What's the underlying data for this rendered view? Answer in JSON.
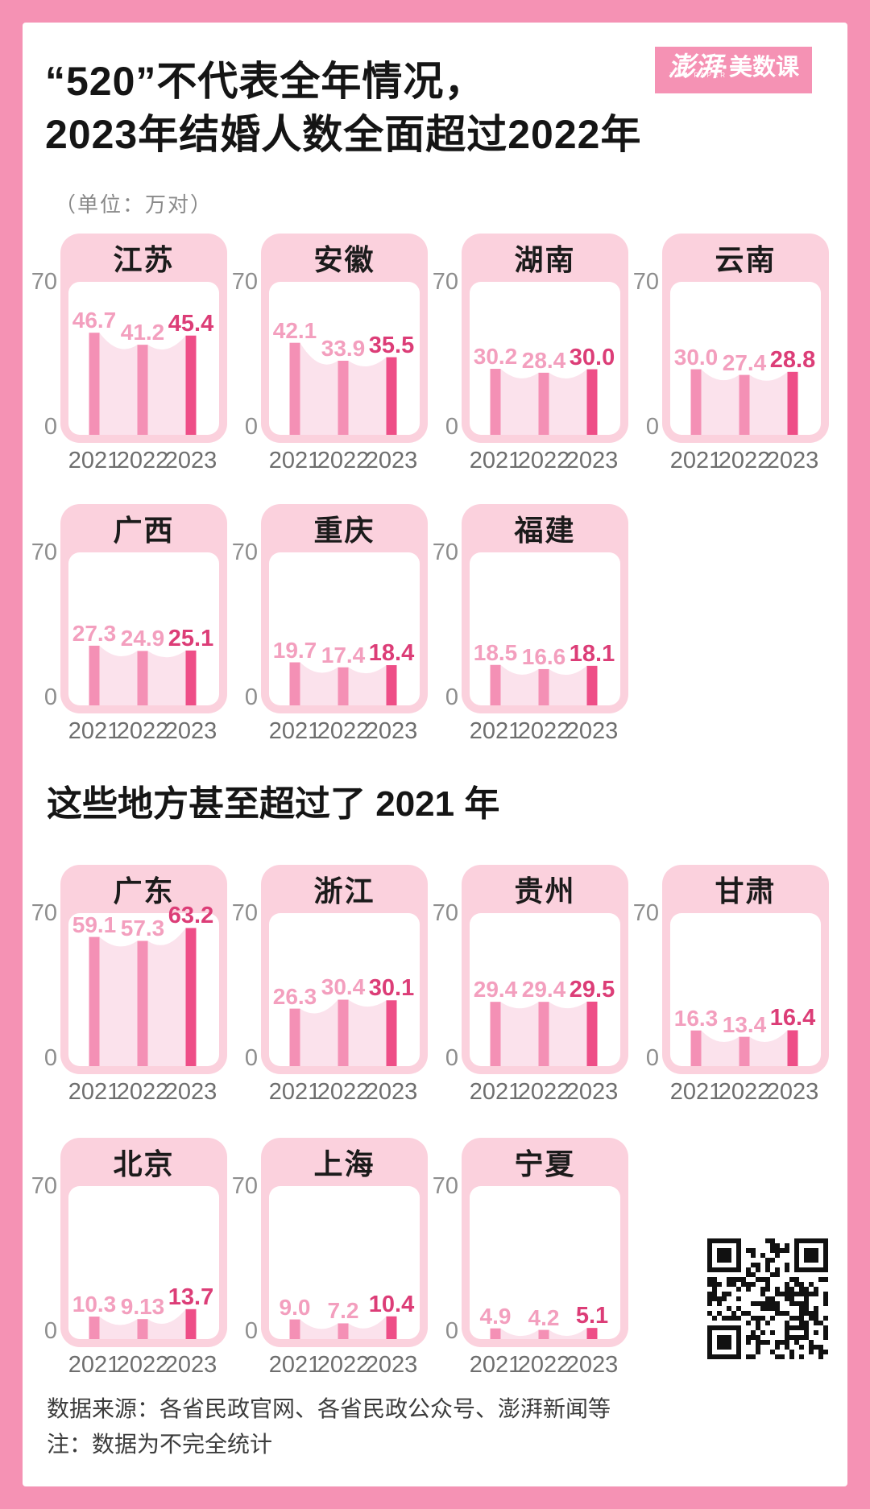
{
  "page": {
    "title_line1": "“520”不代表全年情况，",
    "title_line2": "2023年结婚人数全面超过2022年",
    "unit_note": "（单位：万对）",
    "source_line": "数据来源：各省民政官网、各省民政公众号、澎湃新闻等",
    "note_line": "注：数据为不完全统计"
  },
  "logo": {
    "brand_left": "澎湃",
    "brand_right": "·美数课",
    "sub": "THE PAPER"
  },
  "colors": {
    "frame_pink": "#F592B4",
    "card_pink": "#FBD1DD",
    "area_pink": "#FBE2EC",
    "bar_light": "#F490B5",
    "bar_dark": "#EE4E87",
    "label_light": "#F39FBE",
    "label_dark": "#DC3D77"
  },
  "chart_data": {
    "type": "bar",
    "title": "“520”不代表全年情况，2023年结婚人数全面超过2022年",
    "unit": "万对",
    "years": [
      "2021",
      "2022",
      "2023"
    ],
    "ylim": [
      0,
      70
    ],
    "yticks_shown": [
      "70",
      "0"
    ],
    "legend_position": "none",
    "grid": false,
    "sections": [
      {
        "title": "",
        "rows": [
          [
            {
              "province": "江苏",
              "values": [
                46.7,
                41.2,
                45.4
              ],
              "labels": [
                "46.7",
                "41.2",
                "45.4"
              ]
            },
            {
              "province": "安徽",
              "values": [
                42.1,
                33.9,
                35.5
              ],
              "labels": [
                "42.1",
                "33.9",
                "35.5"
              ]
            },
            {
              "province": "湖南",
              "values": [
                30.2,
                28.4,
                30.0
              ],
              "labels": [
                "30.2",
                "28.4",
                "30.0"
              ]
            },
            {
              "province": "云南",
              "values": [
                30.0,
                27.4,
                28.8
              ],
              "labels": [
                "30.0",
                "27.4",
                "28.8"
              ]
            }
          ],
          [
            {
              "province": "广西",
              "values": [
                27.3,
                24.9,
                25.1
              ],
              "labels": [
                "27.3",
                "24.9",
                "25.1"
              ]
            },
            {
              "province": "重庆",
              "values": [
                19.7,
                17.4,
                18.4
              ],
              "labels": [
                "19.7",
                "17.4",
                "18.4"
              ]
            },
            {
              "province": "福建",
              "values": [
                18.5,
                16.6,
                18.1
              ],
              "labels": [
                "18.5",
                "16.6",
                "18.1"
              ]
            }
          ]
        ]
      },
      {
        "title": "这些地方甚至超过了 2021 年",
        "rows": [
          [
            {
              "province": "广东",
              "values": [
                59.1,
                57.3,
                63.2
              ],
              "labels": [
                "59.1",
                "57.3",
                "63.2"
              ]
            },
            {
              "province": "浙江",
              "values": [
                26.3,
                30.4,
                30.1
              ],
              "labels": [
                "26.3",
                "30.4",
                "30.1"
              ]
            },
            {
              "province": "贵州",
              "values": [
                29.4,
                29.4,
                29.5
              ],
              "labels": [
                "29.4",
                "29.4",
                "29.5"
              ]
            },
            {
              "province": "甘肃",
              "values": [
                16.3,
                13.4,
                16.4
              ],
              "labels": [
                "16.3",
                "13.4",
                "16.4"
              ]
            }
          ],
          [
            {
              "province": "北京",
              "values": [
                10.3,
                9.13,
                13.7
              ],
              "labels": [
                "10.3",
                "9.13",
                "13.7"
              ]
            },
            {
              "province": "上海",
              "values": [
                9.0,
                7.2,
                10.4
              ],
              "labels": [
                "9.0",
                "7.2",
                "10.4"
              ]
            },
            {
              "province": "宁夏",
              "values": [
                4.9,
                4.2,
                5.1
              ],
              "labels": [
                "4.9",
                "4.2",
                "5.1"
              ]
            }
          ]
        ]
      }
    ]
  }
}
